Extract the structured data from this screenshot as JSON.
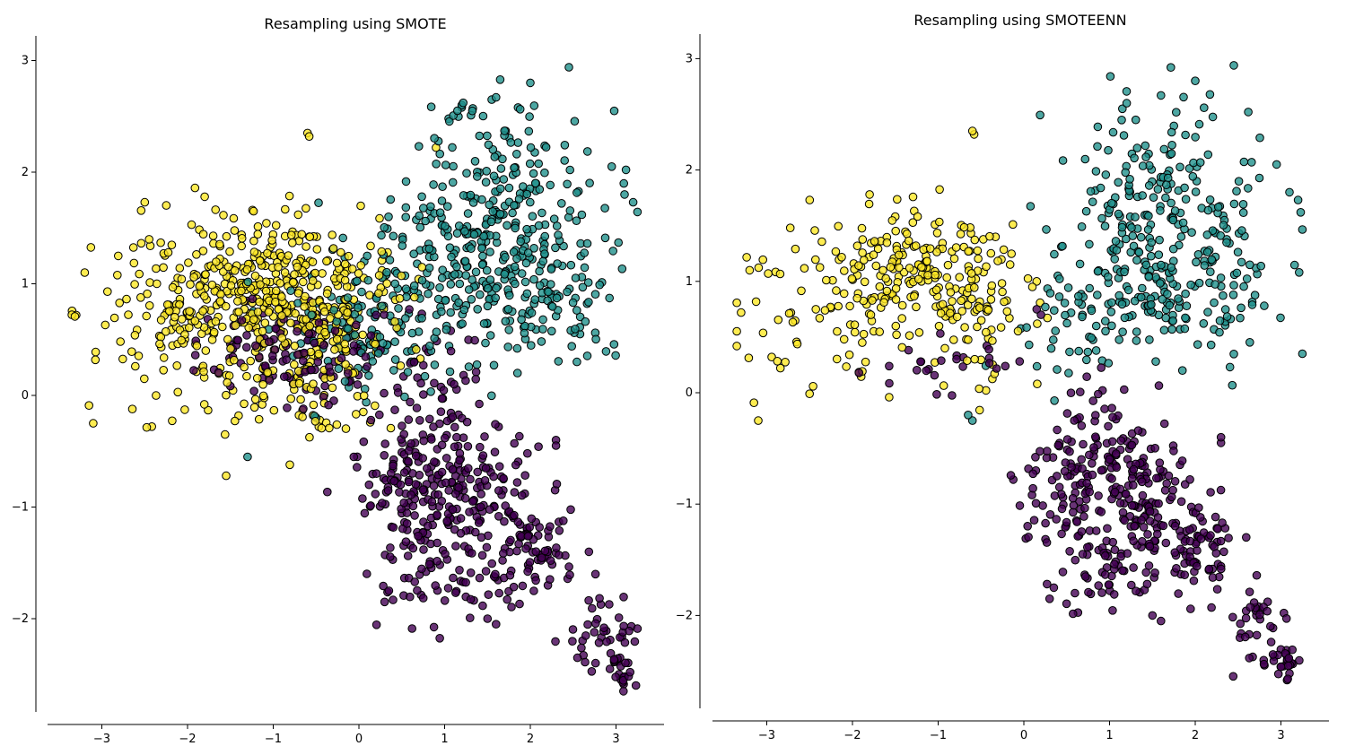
{
  "chart_data": [
    {
      "type": "scatter",
      "title": "Resampling using SMOTE",
      "xlim": [
        -3.6,
        3.6
      ],
      "ylim": [
        -2.85,
        3.22
      ],
      "xticks": [
        -3,
        -2,
        -1,
        0,
        1,
        2,
        3
      ],
      "yticks": [
        -2,
        -1,
        0,
        1,
        2,
        3
      ],
      "grid": false,
      "legend": "none",
      "series": [
        {
          "class": "yellow",
          "color": "#fde725",
          "clusters": [
            {
              "cx": -1.2,
              "cy": 0.95,
              "sx": 0.65,
              "sy": 0.32,
              "n": 300
            },
            {
              "cx": -2.2,
              "cy": 0.6,
              "sx": 0.55,
              "sy": 0.45,
              "n": 100
            },
            {
              "cx": -0.3,
              "cy": 0.7,
              "sx": 0.45,
              "sy": 0.35,
              "n": 120
            },
            {
              "cx": -0.9,
              "cy": 0.1,
              "sx": 0.55,
              "sy": 0.3,
              "n": 90
            }
          ],
          "points": [
            [
              -3.3,
              0.72
            ],
            [
              -3.2,
              1.1
            ],
            [
              -3.1,
              -0.25
            ],
            [
              -3.15,
              -0.09
            ],
            [
              -0.6,
              2.35
            ],
            [
              -0.58,
              2.32
            ],
            [
              -1.55,
              -0.72
            ],
            [
              0.9,
              2.22
            ],
            [
              -2.5,
              1.73
            ],
            [
              -1.8,
              1.78
            ]
          ]
        },
        {
          "class": "teal",
          "color": "#21918c",
          "clusters": [
            {
              "cx": 1.6,
              "cy": 1.6,
              "sx": 0.65,
              "sy": 0.38,
              "n": 180
            },
            {
              "cx": 1.3,
              "cy": 1.0,
              "sx": 0.6,
              "sy": 0.3,
              "n": 150
            },
            {
              "cx": 0.2,
              "cy": 0.55,
              "sx": 0.6,
              "sy": 0.35,
              "n": 130
            },
            {
              "cx": 2.4,
              "cy": 0.9,
              "sx": 0.4,
              "sy": 0.35,
              "n": 60
            },
            {
              "cx": 1.7,
              "cy": 2.25,
              "sx": 0.55,
              "sy": 0.3,
              "n": 40
            }
          ],
          "points": [
            [
              2.45,
              2.94
            ],
            [
              2.0,
              2.8
            ],
            [
              1.85,
              0.2
            ],
            [
              3.2,
              1.73
            ],
            [
              3.1,
              1.8
            ],
            [
              2.95,
              2.05
            ],
            [
              1.2,
              2.6
            ],
            [
              1.15,
              2.55
            ],
            [
              1.2,
              2.58
            ],
            [
              1.6,
              2.67
            ],
            [
              1.55,
              2.65
            ],
            [
              -1.3,
              -0.55
            ],
            [
              -0.5,
              -0.2
            ]
          ]
        },
        {
          "class": "purple",
          "color": "#440154",
          "clusters": [
            {
              "cx": -0.7,
              "cy": 0.4,
              "sx": 0.6,
              "sy": 0.2,
              "n": 120
            },
            {
              "cx": 0.6,
              "cy": -0.85,
              "sx": 0.35,
              "sy": 0.35,
              "n": 120
            },
            {
              "cx": 1.35,
              "cy": -0.9,
              "sx": 0.35,
              "sy": 0.3,
              "n": 120
            },
            {
              "cx": 2.1,
              "cy": -1.35,
              "sx": 0.22,
              "sy": 0.2,
              "n": 70
            },
            {
              "cx": 1.0,
              "cy": -1.6,
              "sx": 0.45,
              "sy": 0.25,
              "n": 70
            },
            {
              "cx": 2.75,
              "cy": -2.1,
              "sx": 0.22,
              "sy": 0.2,
              "n": 40
            },
            {
              "cx": 3.05,
              "cy": -2.45,
              "sx": 0.07,
              "sy": 0.08,
              "n": 22
            },
            {
              "cx": 0.9,
              "cy": -0.2,
              "sx": 0.35,
              "sy": 0.35,
              "n": 60
            }
          ],
          "points": [
            [
              2.3,
              -0.4
            ],
            [
              2.3,
              -0.45
            ],
            [
              0.3,
              -1.85
            ],
            [
              0.35,
              -1.75
            ],
            [
              1.5,
              -2.0
            ],
            [
              1.6,
              -2.05
            ],
            [
              3.08,
              -2.57
            ],
            [
              3.1,
              -2.52
            ],
            [
              2.55,
              -2.35
            ]
          ]
        }
      ]
    },
    {
      "type": "scatter",
      "title": "Resampling using SMOTEENN",
      "xlim": [
        -3.6,
        3.6
      ],
      "ylim": [
        -2.85,
        3.22
      ],
      "xticks": [
        -3,
        -2,
        -1,
        0,
        1,
        2,
        3
      ],
      "yticks": [
        -2,
        -1,
        0,
        1,
        2,
        3
      ],
      "grid": false,
      "legend": "none",
      "series": [
        {
          "class": "yellow",
          "color": "#fde725",
          "clusters": [
            {
              "cx": -1.3,
              "cy": 1.1,
              "sx": 0.55,
              "sy": 0.25,
              "n": 180
            },
            {
              "cx": -2.2,
              "cy": 0.75,
              "sx": 0.55,
              "sy": 0.4,
              "n": 60
            },
            {
              "cx": -0.6,
              "cy": 0.7,
              "sx": 0.35,
              "sy": 0.35,
              "n": 70
            }
          ],
          "points": [
            [
              -3.3,
              0.72
            ],
            [
              -3.2,
              1.1
            ],
            [
              -3.1,
              -0.25
            ],
            [
              -3.15,
              -0.09
            ],
            [
              -0.6,
              2.35
            ],
            [
              -0.58,
              2.32
            ],
            [
              -2.5,
              1.73
            ],
            [
              -1.8,
              1.78
            ],
            [
              0.15,
              1.0
            ],
            [
              0.1,
              0.95
            ]
          ]
        },
        {
          "class": "teal",
          "color": "#21918c",
          "clusters": [
            {
              "cx": 1.7,
              "cy": 1.6,
              "sx": 0.6,
              "sy": 0.35,
              "n": 150
            },
            {
              "cx": 1.4,
              "cy": 0.95,
              "sx": 0.55,
              "sy": 0.28,
              "n": 120
            },
            {
              "cx": 2.4,
              "cy": 0.9,
              "sx": 0.4,
              "sy": 0.35,
              "n": 45
            },
            {
              "cx": 1.7,
              "cy": 2.25,
              "sx": 0.55,
              "sy": 0.3,
              "n": 30
            },
            {
              "cx": 0.6,
              "cy": 0.5,
              "sx": 0.35,
              "sy": 0.25,
              "n": 35
            }
          ],
          "points": [
            [
              2.45,
              2.94
            ],
            [
              2.0,
              2.8
            ],
            [
              1.85,
              0.2
            ],
            [
              3.2,
              1.73
            ],
            [
              3.1,
              1.8
            ],
            [
              2.95,
              2.05
            ],
            [
              1.2,
              2.6
            ],
            [
              1.15,
              2.55
            ],
            [
              1.6,
              2.67
            ],
            [
              -0.6,
              -0.25
            ],
            [
              -0.65,
              -0.2
            ]
          ]
        },
        {
          "class": "purple",
          "color": "#440154",
          "clusters": [
            {
              "cx": 0.7,
              "cy": -0.85,
              "sx": 0.35,
              "sy": 0.35,
              "n": 110
            },
            {
              "cx": 1.35,
              "cy": -0.9,
              "sx": 0.35,
              "sy": 0.3,
              "n": 110
            },
            {
              "cx": 2.1,
              "cy": -1.35,
              "sx": 0.22,
              "sy": 0.2,
              "n": 65
            },
            {
              "cx": 1.0,
              "cy": -1.6,
              "sx": 0.45,
              "sy": 0.25,
              "n": 65
            },
            {
              "cx": 2.75,
              "cy": -2.1,
              "sx": 0.22,
              "sy": 0.2,
              "n": 38
            },
            {
              "cx": 3.05,
              "cy": -2.45,
              "sx": 0.07,
              "sy": 0.08,
              "n": 20
            },
            {
              "cx": -1.1,
              "cy": 0.25,
              "sx": 0.6,
              "sy": 0.15,
              "n": 25
            },
            {
              "cx": 1.0,
              "cy": -0.25,
              "sx": 0.3,
              "sy": 0.3,
              "n": 35
            }
          ],
          "points": [
            [
              2.3,
              -0.4
            ],
            [
              2.3,
              -0.45
            ],
            [
              0.3,
              -1.85
            ],
            [
              0.35,
              -1.75
            ],
            [
              1.5,
              -2.0
            ],
            [
              1.6,
              -2.05
            ],
            [
              3.08,
              -2.57
            ],
            [
              3.1,
              -2.52
            ],
            [
              0.2,
              0.7
            ],
            [
              0.15,
              0.75
            ]
          ]
        }
      ]
    }
  ]
}
